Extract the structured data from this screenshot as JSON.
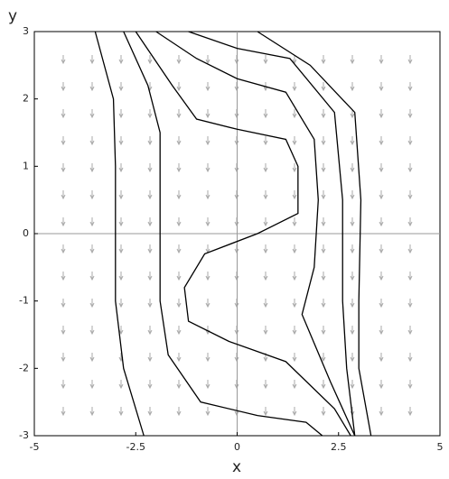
{
  "chart_data": {
    "type": "streamlines",
    "x_label": "x",
    "y_label": "y",
    "xlim": [
      -5,
      5
    ],
    "ylim": [
      -3,
      3
    ],
    "xticks": [
      -5,
      -2.5,
      0,
      2.5,
      5
    ],
    "yticks": [
      -3,
      -2,
      -1,
      0,
      1,
      2,
      3
    ],
    "series": [
      {
        "color": "#000000",
        "x": [
          -3.5,
          -3.05,
          -3,
          -3,
          -3,
          -2.8,
          -2.3
        ],
        "values": [
          3,
          2,
          1,
          0,
          -1,
          -2,
          -3
        ]
      },
      {
        "color": "#000000",
        "x": [
          -2.8,
          -2.2,
          -1.9,
          -1.9,
          -1.9,
          -1.9,
          -1.7,
          -0.9,
          0.5,
          1.7,
          2.1
        ],
        "values": [
          3,
          2.2,
          1.5,
          1,
          0,
          -1,
          -1.8,
          -2.5,
          -2.7,
          -2.8,
          -3
        ]
      },
      {
        "color": "#000000",
        "x": [
          -2.5,
          -1.6,
          -1,
          0,
          1.2,
          1.5,
          1.5,
          0.5,
          -0.8,
          -1.3,
          -1.2,
          -0.2,
          1.2,
          2.4,
          2.8
        ],
        "values": [
          3,
          2.2,
          1.7,
          1.55,
          1.4,
          1,
          0.3,
          0,
          -0.3,
          -0.8,
          -1.3,
          -1.6,
          -1.9,
          -2.6,
          -3
        ]
      },
      {
        "color": "#000000",
        "x": [
          -2,
          -1,
          0,
          1.2,
          1.9,
          2,
          1.9,
          1.6,
          2.3,
          2.9
        ],
        "values": [
          3,
          2.6,
          2.3,
          2.1,
          1.4,
          0.5,
          -0.5,
          -1.2,
          -2.2,
          -3
        ]
      },
      {
        "color": "#000000",
        "x": [
          -1.2,
          0,
          1.3,
          2.4,
          2.6,
          2.6,
          2.7,
          2.9
        ],
        "values": [
          3,
          2.75,
          2.6,
          1.8,
          0.5,
          -1,
          -2,
          -3
        ]
      },
      {
        "color": "#000000",
        "x": [
          0.5,
          1.8,
          2.9,
          3.05,
          3,
          3,
          3.3
        ],
        "values": [
          3,
          2.5,
          1.8,
          0.5,
          -1,
          -2,
          -3
        ]
      }
    ]
  }
}
